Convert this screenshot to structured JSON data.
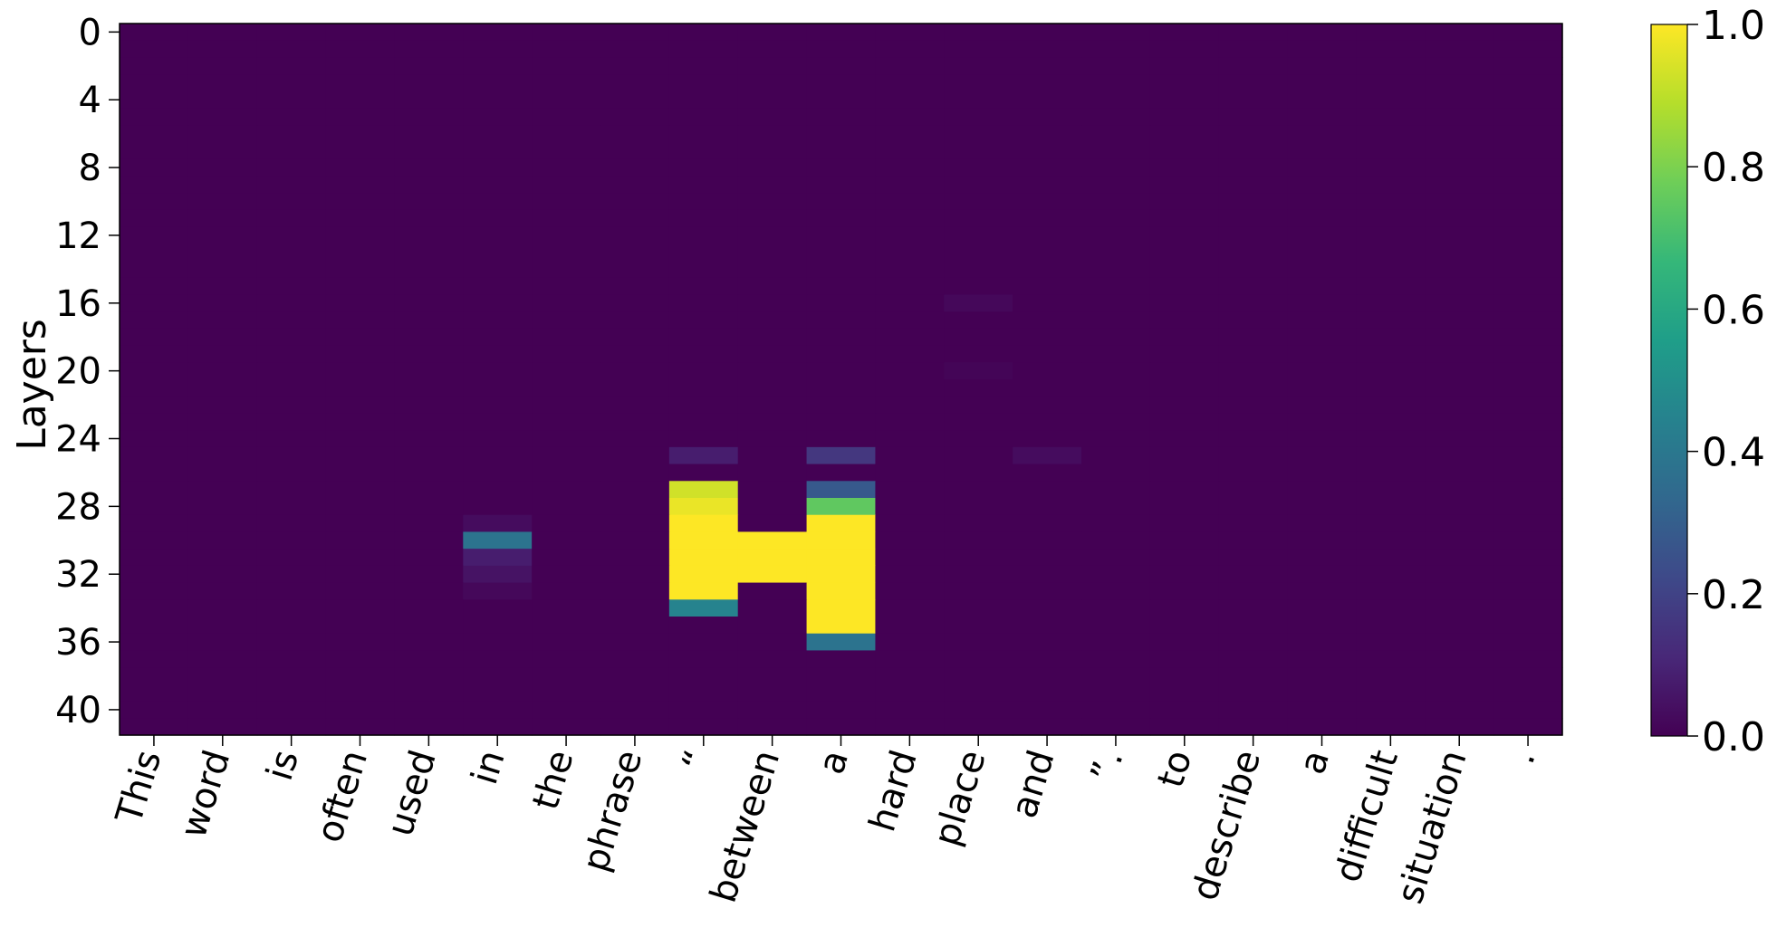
{
  "chart_data": {
    "type": "heatmap",
    "title": "",
    "xlabel": "",
    "ylabel": "Layers",
    "x_tick_labels": [
      "This",
      "word",
      "is",
      "often",
      "used",
      "in",
      "the",
      "phrase",
      "“",
      "between",
      "a",
      "hard",
      "place",
      "and",
      "”.",
      "to",
      "describe",
      "a",
      "difficult",
      "situation",
      "."
    ],
    "y_tick_labels": [
      "0",
      "4",
      "8",
      "12",
      "16",
      "20",
      "24",
      "28",
      "32",
      "36",
      "40"
    ],
    "y_tick_values": [
      0,
      4,
      8,
      12,
      16,
      20,
      24,
      28,
      32,
      36,
      40
    ],
    "n_rows": 42,
    "n_cols": 21,
    "background_value": 0.0,
    "nonzero_cells": [
      {
        "row": 29,
        "col": 5,
        "value": 0.03
      },
      {
        "row": 30,
        "col": 5,
        "value": 0.38
      },
      {
        "row": 31,
        "col": 5,
        "value": 0.08
      },
      {
        "row": 32,
        "col": 5,
        "value": 0.05
      },
      {
        "row": 33,
        "col": 5,
        "value": 0.02
      },
      {
        "row": 25,
        "col": 8,
        "value": 0.08
      },
      {
        "row": 27,
        "col": 8,
        "value": 0.93
      },
      {
        "row": 28,
        "col": 8,
        "value": 0.97
      },
      {
        "row": 29,
        "col": 8,
        "value": 1.0
      },
      {
        "row": 30,
        "col": 8,
        "value": 1.0
      },
      {
        "row": 31,
        "col": 8,
        "value": 1.0
      },
      {
        "row": 32,
        "col": 8,
        "value": 1.0
      },
      {
        "row": 33,
        "col": 8,
        "value": 1.0
      },
      {
        "row": 34,
        "col": 8,
        "value": 0.45
      },
      {
        "row": 30,
        "col": 9,
        "value": 1.0
      },
      {
        "row": 31,
        "col": 9,
        "value": 1.0
      },
      {
        "row": 32,
        "col": 9,
        "value": 1.0
      },
      {
        "row": 25,
        "col": 10,
        "value": 0.16
      },
      {
        "row": 27,
        "col": 10,
        "value": 0.28
      },
      {
        "row": 28,
        "col": 10,
        "value": 0.75
      },
      {
        "row": 29,
        "col": 10,
        "value": 1.0
      },
      {
        "row": 30,
        "col": 10,
        "value": 1.0
      },
      {
        "row": 31,
        "col": 10,
        "value": 1.0
      },
      {
        "row": 32,
        "col": 10,
        "value": 1.0
      },
      {
        "row": 33,
        "col": 10,
        "value": 1.0
      },
      {
        "row": 34,
        "col": 10,
        "value": 1.0
      },
      {
        "row": 35,
        "col": 10,
        "value": 1.0
      },
      {
        "row": 36,
        "col": 10,
        "value": 0.38
      },
      {
        "row": 16,
        "col": 12,
        "value": 0.02
      },
      {
        "row": 20,
        "col": 12,
        "value": 0.01
      },
      {
        "row": 25,
        "col": 13,
        "value": 0.03
      }
    ],
    "colorbar": {
      "colormap": "viridis",
      "range": [
        0.0,
        1.0
      ],
      "tick_labels": [
        "0.0",
        "0.2",
        "0.4",
        "0.6",
        "0.8",
        "1.0"
      ],
      "tick_values": [
        0.0,
        0.2,
        0.4,
        0.6,
        0.8,
        1.0
      ]
    },
    "grid": false,
    "legend": "colorbar-right"
  },
  "colors": {
    "viridis_stops": [
      "#440154",
      "#482878",
      "#3e4989",
      "#31688e",
      "#26828e",
      "#1f9e89",
      "#35b779",
      "#6ece58",
      "#b5de2b",
      "#fde725"
    ]
  }
}
